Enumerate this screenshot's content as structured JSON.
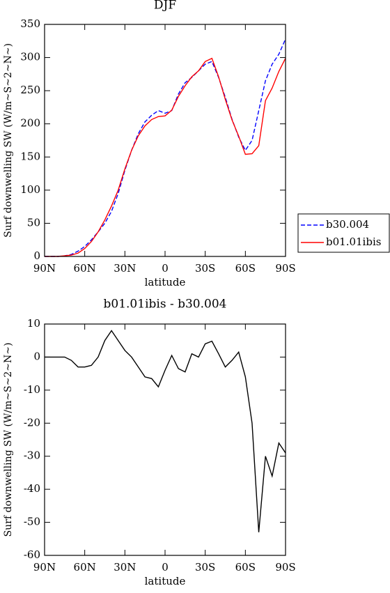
{
  "chart_data": [
    {
      "type": "line",
      "title": "DJF",
      "xlabel": "latitude",
      "ylabel": "Surf downwelling SW (W/m~S~2~N~)",
      "x": [
        90,
        85,
        80,
        75,
        70,
        65,
        60,
        55,
        50,
        45,
        40,
        35,
        30,
        25,
        20,
        15,
        10,
        5,
        0,
        -5,
        -10,
        -15,
        -20,
        -25,
        -30,
        -35,
        -40,
        -45,
        -50,
        -55,
        -60,
        -65,
        -70,
        -75,
        -80,
        -85,
        -90
      ],
      "series": [
        {
          "name": "b30.004",
          "color": "#0000ff",
          "line_style": "dashed",
          "values": [
            0,
            0,
            0,
            1,
            3,
            8,
            15,
            25,
            37,
            50,
            68,
            95,
            130,
            160,
            185,
            203,
            213,
            220,
            216,
            220,
            245,
            262,
            270,
            280,
            290,
            294,
            270,
            240,
            207,
            180,
            160,
            175,
            220,
            265,
            290,
            305,
            328
          ]
        },
        {
          "name": "b01.01ibis",
          "color": "#ff0000",
          "line_style": "solid",
          "values": [
            0,
            0,
            0,
            1,
            2,
            5,
            12,
            22.5,
            37,
            55,
            76,
            100,
            132,
            160,
            182,
            197,
            206.5,
            211,
            212,
            220.5,
            241.5,
            257.5,
            271,
            280,
            294,
            298.8,
            271,
            237,
            206,
            181.5,
            154,
            155,
            167,
            235,
            254,
            279,
            299
          ]
        }
      ],
      "xlim": [
        90,
        -90
      ],
      "xticks": [
        {
          "value": 90,
          "label": "90N"
        },
        {
          "value": 60,
          "label": "60N"
        },
        {
          "value": 30,
          "label": "30N"
        },
        0,
        {
          "value": -30,
          "label": "30S"
        },
        {
          "value": -60,
          "label": "60S"
        },
        {
          "value": -90,
          "label": "90S"
        }
      ],
      "ylim": [
        0,
        350
      ],
      "yticks": [
        0,
        50,
        100,
        150,
        200,
        250,
        300,
        350
      ],
      "legend": "right"
    },
    {
      "type": "line",
      "title": "b01.01ibis - b30.004",
      "xlabel": "latitude",
      "ylabel": "Surf downwelling SW (W/m~S~2~N~)",
      "x": [
        90,
        85,
        80,
        75,
        70,
        65,
        60,
        55,
        50,
        45,
        40,
        35,
        30,
        25,
        20,
        15,
        10,
        5,
        0,
        -5,
        -10,
        -15,
        -20,
        -25,
        -30,
        -35,
        -40,
        -45,
        -50,
        -55,
        -60,
        -65,
        -70,
        -75,
        -80,
        -85,
        -90
      ],
      "values": [
        0,
        0,
        0,
        0,
        -1,
        -3,
        -3,
        -2.5,
        0,
        5,
        8,
        5,
        2,
        0,
        -3,
        -6,
        -6.5,
        -9,
        -4,
        0.5,
        -3.5,
        -4.5,
        1,
        0,
        4,
        4.8,
        1,
        -3,
        -1,
        1.5,
        -6,
        -20,
        -53,
        -30,
        -36,
        -26,
        -29
      ],
      "color": "#000000",
      "xlim": [
        90,
        -90
      ],
      "xticks": [
        {
          "value": 90,
          "label": "90N"
        },
        {
          "value": 60,
          "label": "60N"
        },
        {
          "value": 30,
          "label": "30N"
        },
        0,
        {
          "value": -30,
          "label": "30S"
        },
        {
          "value": -60,
          "label": "60S"
        },
        {
          "value": -90,
          "label": "90S"
        }
      ],
      "ylim": [
        -60,
        10
      ],
      "yticks": [
        -60,
        -50,
        -40,
        -30,
        -20,
        -10,
        0,
        10
      ]
    }
  ]
}
